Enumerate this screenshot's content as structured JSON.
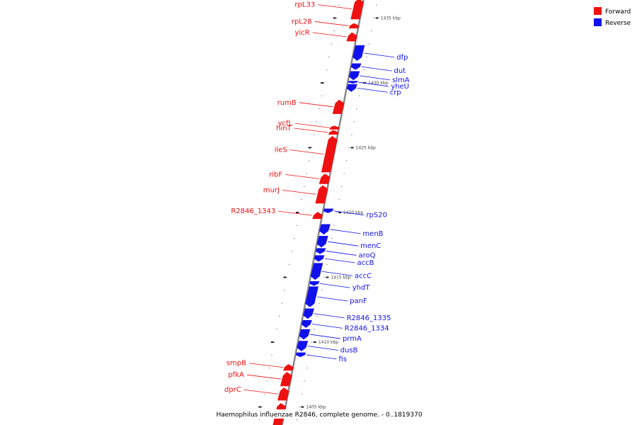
{
  "caption": "Haemophilus influenzae R2846, complete genome. - 0..1819370",
  "legend": [
    {
      "label": "Forward",
      "color": "#ee1111"
    },
    {
      "label": "Reverse",
      "color": "#1111ee"
    }
  ],
  "colors": {
    "forward": "#ee1111",
    "reverse": "#1111ee",
    "backbone": "#888888"
  },
  "axis": {
    "unit": "kbp",
    "view_start_kbp": 1403.5,
    "view_end_kbp": 1436.5,
    "ticks": [
      {
        "kbp": 1405,
        "label": "1405 kbp"
      },
      {
        "kbp": 1410,
        "label": "1410 kbp"
      },
      {
        "kbp": 1415,
        "label": "1415 kbp"
      },
      {
        "kbp": 1420,
        "label": "1420 kbp"
      },
      {
        "kbp": 1425,
        "label": "1425 kbp"
      },
      {
        "kbp": 1430,
        "label": "1430 kbp"
      },
      {
        "kbp": 1435,
        "label": "1435 kbp"
      }
    ]
  },
  "genes": [
    {
      "name": "rpL33",
      "strand": "forward",
      "start_kbp": 1434.9,
      "end_kbp": 1436.5
    },
    {
      "name": "rpL28",
      "strand": "forward",
      "start_kbp": 1434.2,
      "end_kbp": 1434.6
    },
    {
      "name": "yicR",
      "strand": "forward",
      "start_kbp": 1433.2,
      "end_kbp": 1433.9
    },
    {
      "name": "dfp",
      "strand": "reverse",
      "start_kbp": 1431.7,
      "end_kbp": 1432.9
    },
    {
      "name": "dut",
      "strand": "reverse",
      "start_kbp": 1431.0,
      "end_kbp": 1431.5
    },
    {
      "name": "slmA",
      "strand": "reverse",
      "start_kbp": 1430.2,
      "end_kbp": 1430.9
    },
    {
      "name": "yheU",
      "strand": "reverse",
      "start_kbp": 1429.95,
      "end_kbp": 1430.15
    },
    {
      "name": "crp",
      "strand": "reverse",
      "start_kbp": 1429.3,
      "end_kbp": 1429.9
    },
    {
      "name": "rumB",
      "strand": "forward",
      "start_kbp": 1427.6,
      "end_kbp": 1428.7
    },
    {
      "name": "ycfL",
      "strand": "forward",
      "start_kbp": 1426.4,
      "end_kbp": 1426.7
    },
    {
      "name": "hinT",
      "strand": "forward",
      "start_kbp": 1426.0,
      "end_kbp": 1426.35
    },
    {
      "name": "ileS",
      "strand": "forward",
      "start_kbp": 1423.1,
      "end_kbp": 1425.9
    },
    {
      "name": "ribF",
      "strand": "forward",
      "start_kbp": 1422.2,
      "end_kbp": 1423.0
    },
    {
      "name": "murJ",
      "strand": "forward",
      "start_kbp": 1420.7,
      "end_kbp": 1422.1
    },
    {
      "name": "R2846_1343",
      "strand": "forward",
      "start_kbp": 1419.5,
      "end_kbp": 1420.05
    },
    {
      "name": "rpS20",
      "strand": "reverse",
      "start_kbp": 1419.95,
      "end_kbp": 1420.3
    },
    {
      "name": "menB",
      "strand": "reverse",
      "start_kbp": 1418.3,
      "end_kbp": 1419.1
    },
    {
      "name": "menC",
      "strand": "reverse",
      "start_kbp": 1417.3,
      "end_kbp": 1418.2
    },
    {
      "name": "aroQ",
      "strand": "reverse",
      "start_kbp": 1416.8,
      "end_kbp": 1417.25
    },
    {
      "name": "accB",
      "strand": "reverse",
      "start_kbp": 1416.2,
      "end_kbp": 1416.7
    },
    {
      "name": "accC",
      "strand": "reverse",
      "start_kbp": 1414.8,
      "end_kbp": 1416.1
    },
    {
      "name": "yhdT",
      "strand": "reverse",
      "start_kbp": 1414.35,
      "end_kbp": 1414.7
    },
    {
      "name": "panF",
      "strand": "reverse",
      "start_kbp": 1412.7,
      "end_kbp": 1414.3
    },
    {
      "name": "R2846_1335",
      "strand": "reverse",
      "start_kbp": 1411.8,
      "end_kbp": 1412.6
    },
    {
      "name": "R2846_1334",
      "strand": "reverse",
      "start_kbp": 1411.1,
      "end_kbp": 1411.7
    },
    {
      "name": "prmA",
      "strand": "reverse",
      "start_kbp": 1410.2,
      "end_kbp": 1411.0
    },
    {
      "name": "dusB",
      "strand": "reverse",
      "start_kbp": 1409.3,
      "end_kbp": 1410.1
    },
    {
      "name": "fis",
      "strand": "reverse",
      "start_kbp": 1408.85,
      "end_kbp": 1409.2
    },
    {
      "name": "smpB",
      "strand": "forward",
      "start_kbp": 1407.8,
      "end_kbp": 1408.3
    },
    {
      "name": "pfkA",
      "strand": "forward",
      "start_kbp": 1406.6,
      "end_kbp": 1407.7
    },
    {
      "name": "dprC",
      "strand": "forward",
      "start_kbp": 1405.5,
      "end_kbp": 1406.5
    },
    {
      "name": "",
      "strand": "forward",
      "start_kbp": 1403.5,
      "end_kbp": 1405.3
    }
  ]
}
